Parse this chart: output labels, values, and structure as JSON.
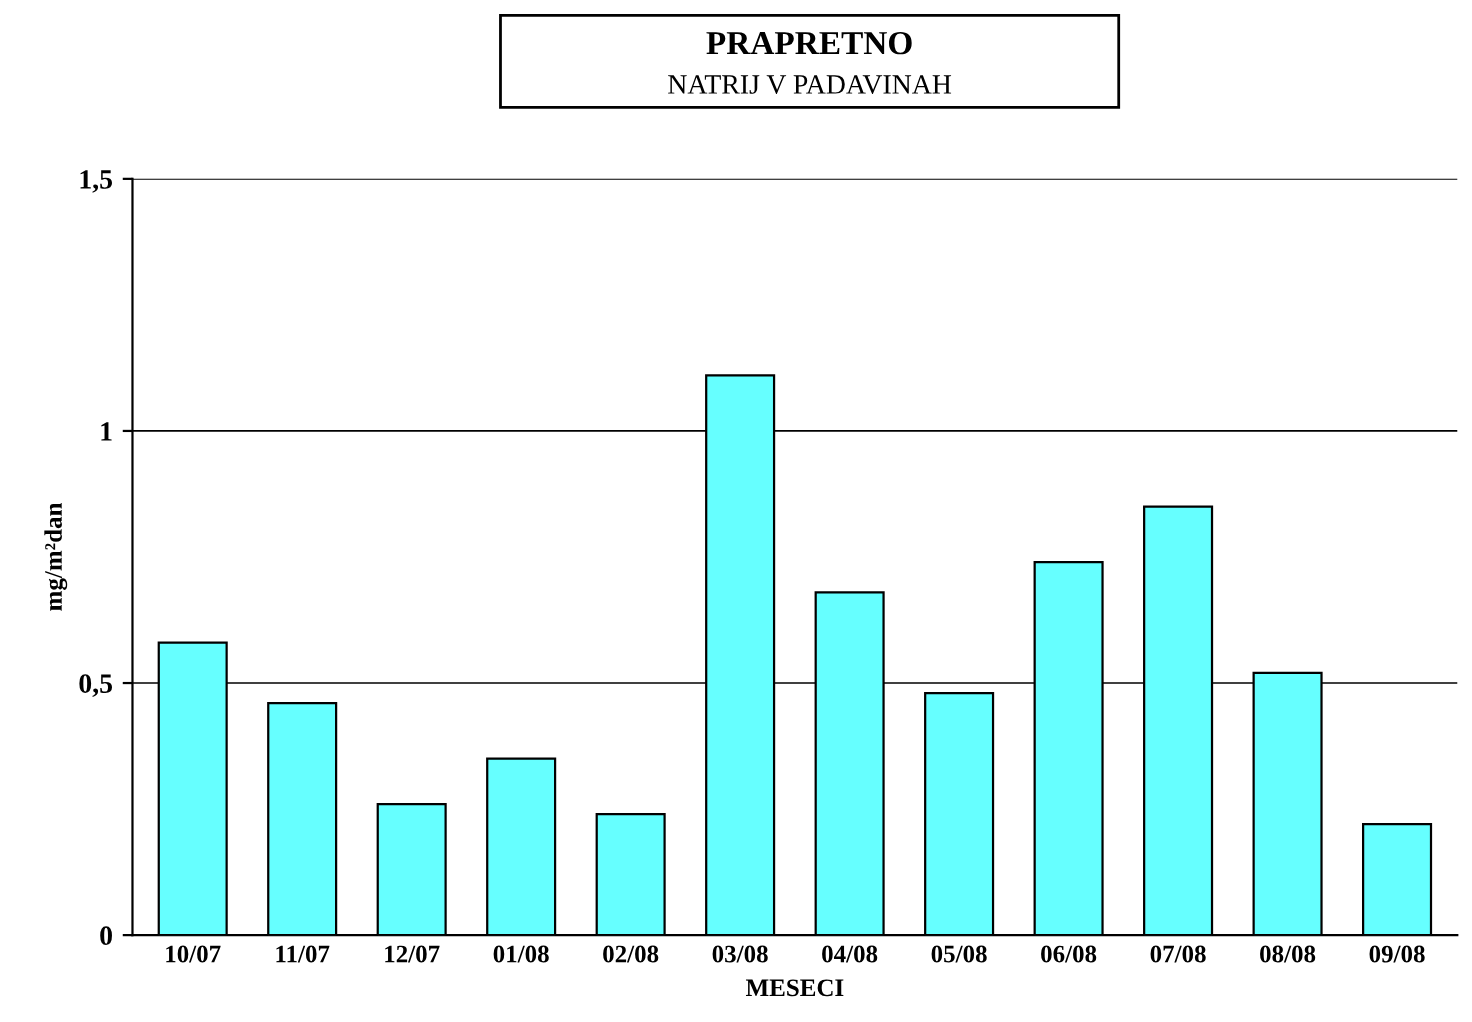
{
  "chart_data": {
    "type": "bar",
    "title": "PRAPRETNO",
    "subtitle": "NATRIJ V PADAVINAH",
    "xlabel": "MESECI",
    "ylabel": "mg/m²dan",
    "categories": [
      "10/07",
      "11/07",
      "12/07",
      "01/08",
      "02/08",
      "03/08",
      "04/08",
      "05/08",
      "06/08",
      "07/08",
      "08/08",
      "09/08"
    ],
    "values": [
      0.58,
      0.46,
      0.26,
      0.35,
      0.24,
      1.11,
      0.68,
      0.48,
      0.74,
      0.85,
      0.52,
      0.22
    ],
    "color": "#66ffff",
    "ylim": [
      0,
      1.5
    ],
    "yticks": [
      0,
      {
        "value": 0.5,
        "label": "0,5"
      },
      1,
      {
        "value": 1.5,
        "label": "1,5"
      }
    ],
    "grid": "y"
  }
}
